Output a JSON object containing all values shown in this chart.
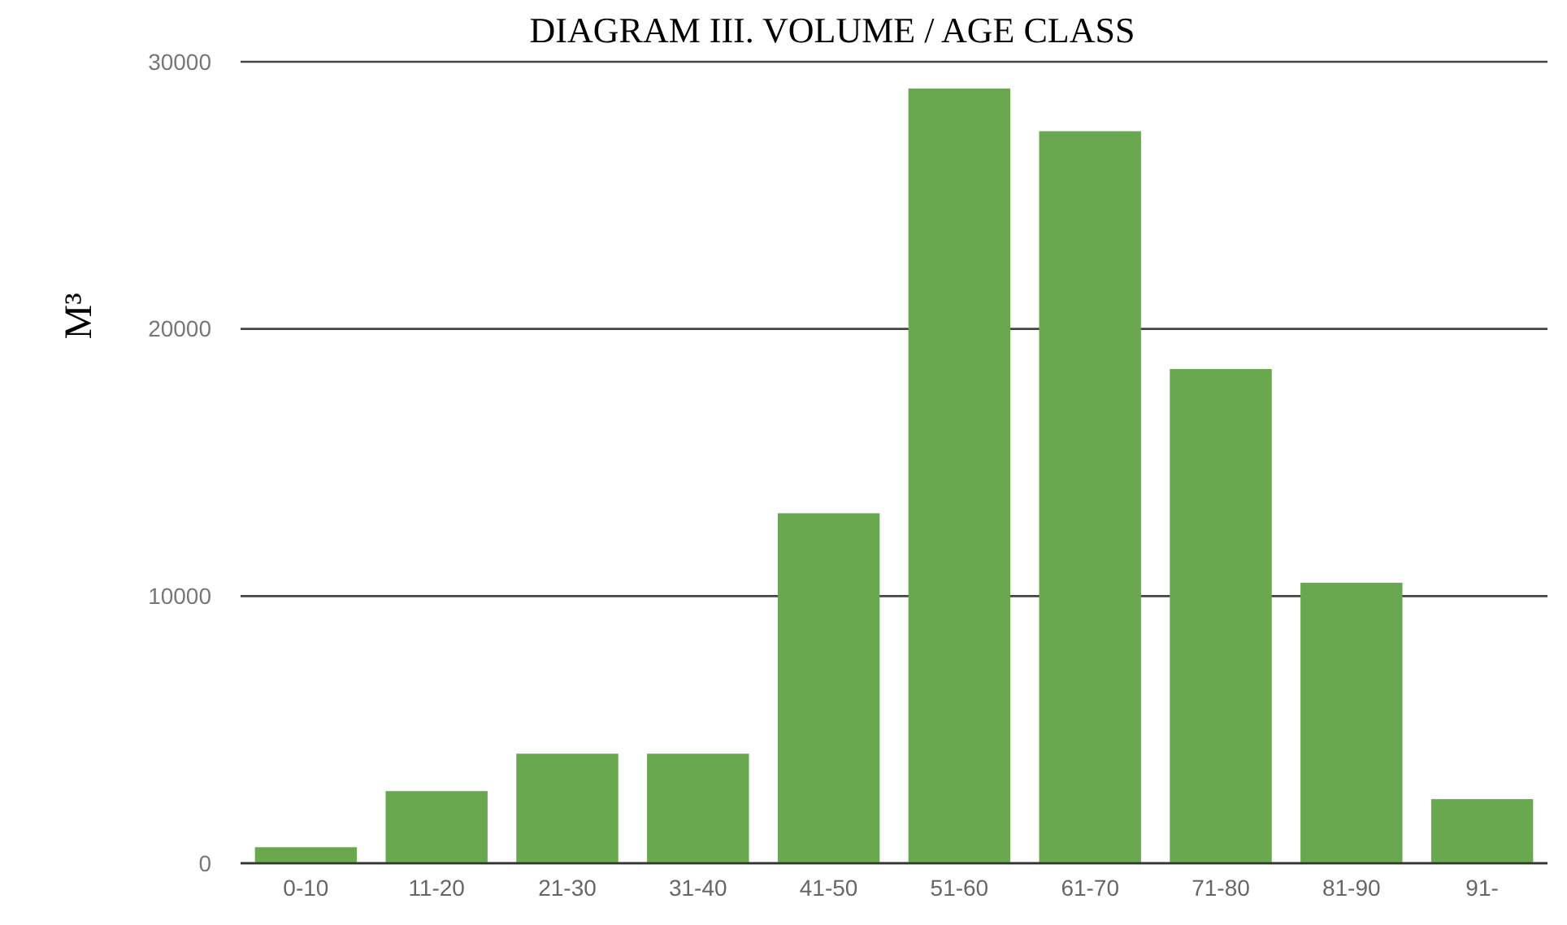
{
  "chart_data": {
    "type": "bar",
    "title": "DIAGRAM III. VOLUME / AGE CLASS",
    "ylabel": "M³",
    "categories": [
      "0-10",
      "11-20",
      "21-30",
      "31-40",
      "41-50",
      "51-60",
      "61-70",
      "71-80",
      "81-90",
      "91-"
    ],
    "values": [
      600,
      2700,
      4100,
      4100,
      13100,
      29000,
      27400,
      18500,
      10500,
      2400
    ],
    "color": "#6aa84f",
    "ylim": [
      0,
      30000
    ],
    "yticks": [
      0,
      10000,
      20000,
      30000
    ],
    "grid": "y"
  }
}
